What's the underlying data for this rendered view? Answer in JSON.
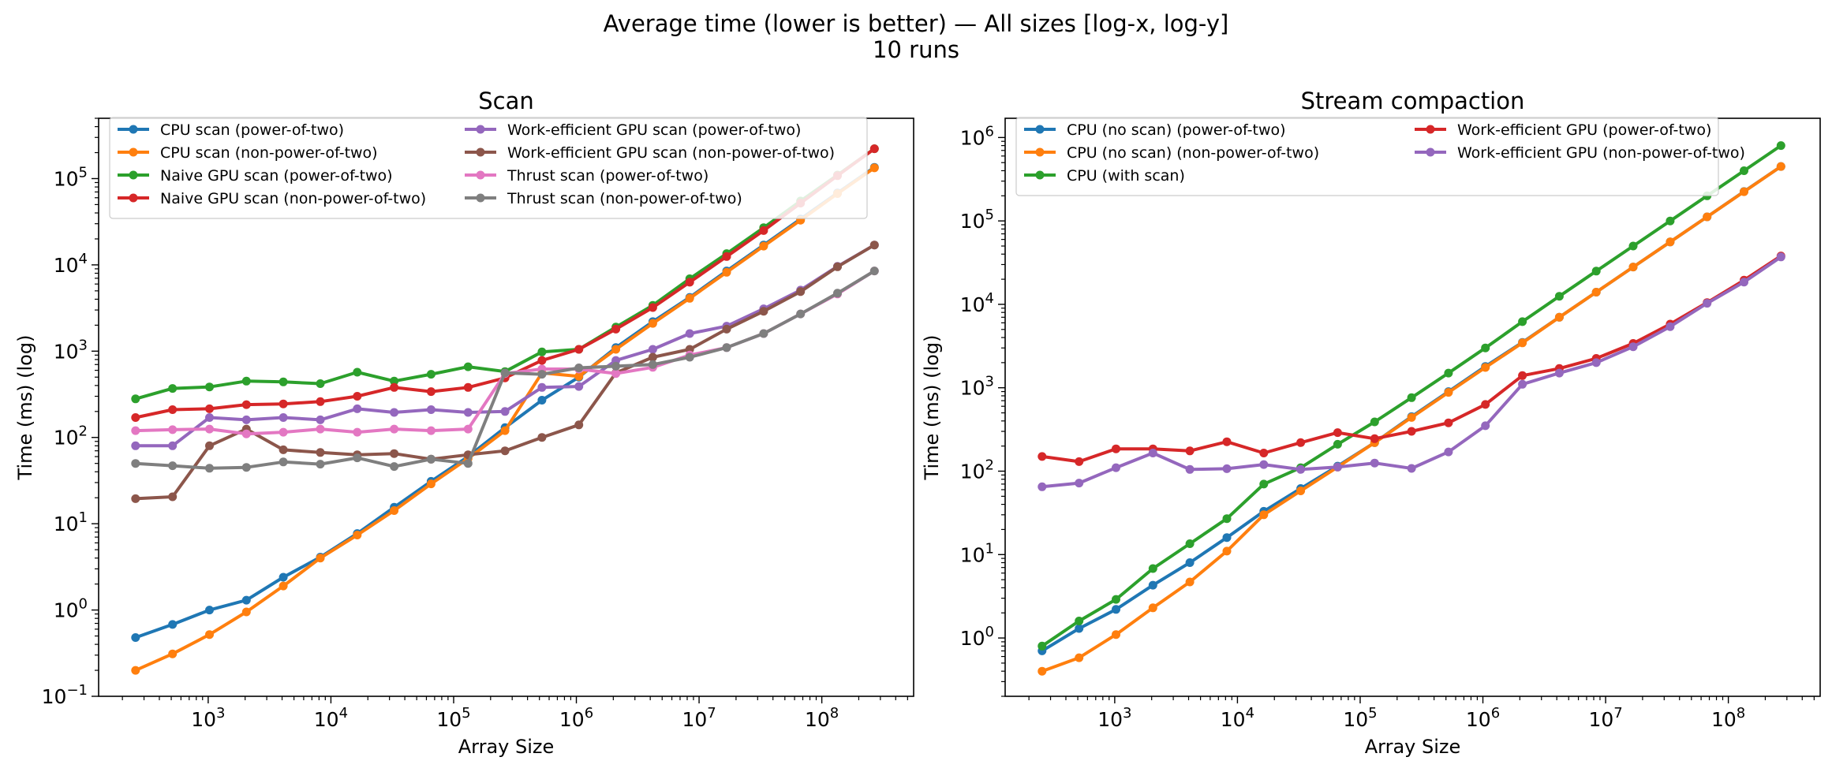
{
  "figure": {
    "suptitle_line1": "Average time (lower is better) — All sizes [log-x, log-y]",
    "suptitle_line2": "10 runs"
  },
  "chart_data": [
    {
      "type": "line",
      "title": "Scan",
      "xlabel": "Array Size",
      "ylabel": "Time (ms) (log)",
      "xscale": "log",
      "yscale": "log",
      "xlim": [
        128,
        560000000
      ],
      "ylim": [
        0.1,
        500000
      ],
      "xticks": [
        {
          "value": 1000,
          "base": "10",
          "exp": "3"
        },
        {
          "value": 10000,
          "base": "10",
          "exp": "4"
        },
        {
          "value": 100000,
          "base": "10",
          "exp": "5"
        },
        {
          "value": 1000000,
          "base": "10",
          "exp": "6"
        },
        {
          "value": 10000000,
          "base": "10",
          "exp": "7"
        },
        {
          "value": 100000000,
          "base": "10",
          "exp": "8"
        }
      ],
      "yticks": [
        {
          "value": 0.1,
          "base": "10",
          "exp": "−1"
        },
        {
          "value": 1,
          "base": "10",
          "exp": "0"
        },
        {
          "value": 10,
          "base": "10",
          "exp": "1"
        },
        {
          "value": 100,
          "base": "10",
          "exp": "2"
        },
        {
          "value": 1000,
          "base": "10",
          "exp": "3"
        },
        {
          "value": 10000,
          "base": "10",
          "exp": "4"
        },
        {
          "value": 100000,
          "base": "10",
          "exp": "5"
        }
      ],
      "legend_position": "top, 2 columns",
      "legend_columns": 2,
      "x": [
        256,
        512,
        1024,
        2048,
        4096,
        8192,
        16384,
        32768,
        65536,
        131072,
        262144,
        524288,
        1048576,
        2097152,
        4194304,
        8388608,
        16777216,
        33554432,
        67108864,
        134217728,
        268435456
      ],
      "series": [
        {
          "name": "CPU scan (power-of-two)",
          "color": "#1f77b4",
          "values": [
            0.48,
            0.68,
            1.0,
            1.3,
            2.4,
            4.1,
            7.7,
            15.5,
            31,
            60,
            130,
            270,
            500,
            1100,
            2200,
            4200,
            8500,
            17000,
            34000,
            68000,
            135000
          ]
        },
        {
          "name": "CPU scan (non-power-of-two)",
          "color": "#ff7f0e",
          "values": [
            0.2,
            0.31,
            0.52,
            0.95,
            1.9,
            4.0,
            7.4,
            14.2,
            29,
            57,
            120,
            560,
            510,
            1050,
            2100,
            4100,
            8200,
            16500,
            33000,
            67000,
            133000
          ]
        },
        {
          "name": "Naive GPU scan (power-of-two)",
          "color": "#2ca02c",
          "values": [
            280,
            370,
            385,
            450,
            440,
            420,
            570,
            450,
            540,
            660,
            580,
            980,
            1050,
            1900,
            3400,
            6900,
            13500,
            27000,
            55000,
            110000,
            222000
          ]
        },
        {
          "name": "Naive GPU scan (non-power-of-two)",
          "color": "#d62728",
          "values": [
            170,
            210,
            215,
            240,
            245,
            260,
            300,
            380,
            340,
            380,
            490,
            780,
            1050,
            1800,
            3200,
            6300,
            12500,
            25000,
            52000,
            108000,
            222000
          ]
        },
        {
          "name": "Work-efficient GPU scan (power-of-two)",
          "color": "#9467bd",
          "values": [
            80,
            80,
            170,
            160,
            170,
            160,
            215,
            195,
            210,
            195,
            200,
            380,
            390,
            780,
            1050,
            1600,
            1950,
            3100,
            5100,
            9600,
            17000
          ]
        },
        {
          "name": "Work-efficient GPU scan (non-power-of-two)",
          "color": "#8c564b",
          "values": [
            19.5,
            20.5,
            80,
            125,
            72,
            67,
            63,
            65,
            56,
            63,
            70,
            100,
            140,
            560,
            850,
            1050,
            1800,
            2900,
            4900,
            9500,
            17000
          ]
        },
        {
          "name": "Thrust scan (power-of-two)",
          "color": "#e377c2",
          "values": [
            120,
            123,
            125,
            110,
            115,
            125,
            115,
            125,
            120,
            125,
            550,
            620,
            620,
            550,
            650,
            900,
            1100,
            1600,
            2700,
            4600,
            8500
          ]
        },
        {
          "name": "Thrust scan (non-power-of-two)",
          "color": "#7f7f7f",
          "values": [
            50,
            47,
            44,
            45,
            52,
            49,
            58,
            46,
            56,
            50,
            560,
            540,
            640,
            670,
            700,
            850,
            1100,
            1600,
            2700,
            4700,
            8500
          ]
        }
      ]
    },
    {
      "type": "line",
      "title": "Stream compaction",
      "xlabel": "Array Size",
      "ylabel": "Time (ms) (log)",
      "xscale": "log",
      "yscale": "log",
      "xlim": [
        128,
        560000000
      ],
      "ylim": [
        0.2,
        1700000
      ],
      "xticks": [
        {
          "value": 1000,
          "base": "10",
          "exp": "3"
        },
        {
          "value": 10000,
          "base": "10",
          "exp": "4"
        },
        {
          "value": 100000,
          "base": "10",
          "exp": "5"
        },
        {
          "value": 1000000,
          "base": "10",
          "exp": "6"
        },
        {
          "value": 10000000,
          "base": "10",
          "exp": "7"
        },
        {
          "value": 100000000,
          "base": "10",
          "exp": "8"
        }
      ],
      "yticks": [
        {
          "value": 1,
          "base": "10",
          "exp": "0"
        },
        {
          "value": 10,
          "base": "10",
          "exp": "1"
        },
        {
          "value": 100,
          "base": "10",
          "exp": "2"
        },
        {
          "value": 1000,
          "base": "10",
          "exp": "3"
        },
        {
          "value": 10000,
          "base": "10",
          "exp": "4"
        },
        {
          "value": 100000,
          "base": "10",
          "exp": "5"
        },
        {
          "value": 1000000,
          "base": "10",
          "exp": "6"
        }
      ],
      "legend_position": "top, 2 columns",
      "legend_columns": 2,
      "x": [
        256,
        512,
        1024,
        2048,
        4096,
        8192,
        16384,
        32768,
        65536,
        131072,
        262144,
        524288,
        1048576,
        2097152,
        4194304,
        8388608,
        16777216,
        33554432,
        67108864,
        134217728,
        268435456
      ],
      "series": [
        {
          "name": "CPU (no scan) (power-of-two)",
          "color": "#1f77b4",
          "values": [
            0.7,
            1.3,
            2.2,
            4.3,
            8.0,
            16,
            33,
            62,
            115,
            220,
            450,
            900,
            1800,
            3500,
            7000,
            14000,
            28000,
            56000,
            112000,
            225000,
            450000
          ]
        },
        {
          "name": "CPU (no scan) (non-power-of-two)",
          "color": "#ff7f0e",
          "values": [
            0.4,
            0.58,
            1.1,
            2.3,
            4.7,
            11,
            30,
            58,
            112,
            220,
            440,
            880,
            1750,
            3450,
            7000,
            14000,
            28000,
            56000,
            112000,
            224000,
            450000
          ]
        },
        {
          "name": "CPU (with scan)",
          "color": "#2ca02c",
          "values": [
            0.8,
            1.6,
            2.9,
            6.8,
            13.5,
            27,
            70,
            110,
            210,
            390,
            760,
            1500,
            3000,
            6200,
            12500,
            25000,
            50000,
            100000,
            200000,
            400000,
            800000
          ]
        },
        {
          "name": "Work-efficient GPU (power-of-two)",
          "color": "#d62728",
          "values": [
            150,
            130,
            185,
            185,
            175,
            225,
            165,
            220,
            290,
            245,
            300,
            380,
            630,
            1400,
            1700,
            2250,
            3400,
            5800,
            10500,
            19500,
            38000
          ]
        },
        {
          "name": "Work-efficient GPU (non-power-of-two)",
          "color": "#9467bd",
          "values": [
            65,
            72,
            110,
            165,
            105,
            107,
            120,
            105,
            112,
            125,
            108,
            170,
            350,
            1100,
            1500,
            2000,
            3100,
            5400,
            10300,
            18500,
            37000
          ]
        }
      ]
    }
  ]
}
